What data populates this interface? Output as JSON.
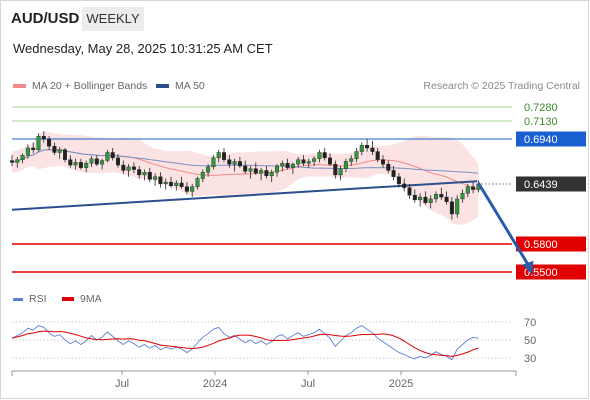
{
  "header": {
    "symbol": "AUD/USD",
    "timeframe": "WEEKLY"
  },
  "datetime": "Wednesday, May 28, 2025 10:31:25 AM CET",
  "legend": {
    "ma_bb": {
      "label": "MA 20 + Bollinger Bands",
      "color": "#f08a8a"
    },
    "ma50": {
      "label": "MA 50",
      "color": "#2b4f8c"
    },
    "credit": "Research © 2025 Trading Central"
  },
  "rsi_legend": {
    "rsi": {
      "label": "RSI",
      "color": "#5b7fd6"
    },
    "ma9": {
      "label": "9MA",
      "color": "#e00000"
    }
  },
  "chart_data": [
    {
      "type": "candlestick",
      "instrument": "AUD/USD",
      "timeframe": "WEEKLY",
      "x_ticks": [
        "Jul",
        "2024",
        "Jul",
        "2025"
      ],
      "current_price": 0.6439,
      "levels": [
        {
          "value": 0.728,
          "label": "0.7280",
          "kind": "target",
          "color": "#88c96b"
        },
        {
          "value": 0.713,
          "label": "0.7130",
          "kind": "target",
          "color": "#88c96b"
        },
        {
          "value": 0.694,
          "label": "0.6940",
          "kind": "pivot",
          "color": "#1a5fd0"
        },
        {
          "value": 0.6439,
          "label": "0.6439",
          "kind": "last",
          "color": "#333333"
        },
        {
          "value": 0.58,
          "label": "0.5800",
          "kind": "support",
          "color": "#e00000"
        },
        {
          "value": 0.55,
          "label": "0.5500",
          "kind": "support",
          "color": "#e00000"
        }
      ],
      "trendline": {
        "from": [
          0,
          0.6165
        ],
        "to": [
          87,
          0.647
        ]
      },
      "forecast_arrow": {
        "from": [
          88,
          0.645
        ],
        "to": [
          98,
          0.547
        ]
      },
      "weeks_per_tick": {
        "Jul": 20,
        "2024": 46,
        "Jul ": 72,
        "2025": 98
      },
      "ohlc": [
        [
          0.67,
          0.676,
          0.664,
          0.668
        ],
        [
          0.668,
          0.674,
          0.662,
          0.671
        ],
        [
          0.671,
          0.678,
          0.667,
          0.676
        ],
        [
          0.676,
          0.688,
          0.672,
          0.684
        ],
        [
          0.684,
          0.69,
          0.678,
          0.682
        ],
        [
          0.682,
          0.7,
          0.68,
          0.697
        ],
        [
          0.697,
          0.702,
          0.69,
          0.694
        ],
        [
          0.694,
          0.697,
          0.682,
          0.686
        ],
        [
          0.686,
          0.69,
          0.676,
          0.679
        ],
        [
          0.679,
          0.685,
          0.672,
          0.682
        ],
        [
          0.682,
          0.684,
          0.668,
          0.671
        ],
        [
          0.671,
          0.676,
          0.662,
          0.665
        ],
        [
          0.665,
          0.672,
          0.66,
          0.668
        ],
        [
          0.668,
          0.672,
          0.66,
          0.662
        ],
        [
          0.662,
          0.67,
          0.657,
          0.667
        ],
        [
          0.667,
          0.675,
          0.663,
          0.672
        ],
        [
          0.672,
          0.676,
          0.664,
          0.666
        ],
        [
          0.666,
          0.672,
          0.66,
          0.67
        ],
        [
          0.67,
          0.682,
          0.668,
          0.679
        ],
        [
          0.679,
          0.684,
          0.67,
          0.673
        ],
        [
          0.673,
          0.677,
          0.662,
          0.665
        ],
        [
          0.665,
          0.67,
          0.655,
          0.659
        ],
        [
          0.659,
          0.666,
          0.652,
          0.663
        ],
        [
          0.663,
          0.668,
          0.656,
          0.66
        ],
        [
          0.66,
          0.664,
          0.65,
          0.654
        ],
        [
          0.654,
          0.66,
          0.648,
          0.657
        ],
        [
          0.657,
          0.662,
          0.646,
          0.649
        ],
        [
          0.649,
          0.656,
          0.642,
          0.652
        ],
        [
          0.652,
          0.657,
          0.64,
          0.644
        ],
        [
          0.644,
          0.65,
          0.638,
          0.646
        ],
        [
          0.646,
          0.652,
          0.64,
          0.642
        ],
        [
          0.642,
          0.648,
          0.637,
          0.645
        ],
        [
          0.645,
          0.652,
          0.639,
          0.641
        ],
        [
          0.641,
          0.646,
          0.633,
          0.636
        ],
        [
          0.636,
          0.644,
          0.63,
          0.641
        ],
        [
          0.641,
          0.652,
          0.638,
          0.65
        ],
        [
          0.65,
          0.66,
          0.646,
          0.657
        ],
        [
          0.657,
          0.666,
          0.652,
          0.663
        ],
        [
          0.663,
          0.676,
          0.66,
          0.673
        ],
        [
          0.673,
          0.682,
          0.668,
          0.679
        ],
        [
          0.679,
          0.684,
          0.668,
          0.671
        ],
        [
          0.671,
          0.676,
          0.662,
          0.666
        ],
        [
          0.666,
          0.672,
          0.658,
          0.669
        ],
        [
          0.669,
          0.674,
          0.662,
          0.664
        ],
        [
          0.664,
          0.67,
          0.655,
          0.658
        ],
        [
          0.658,
          0.664,
          0.65,
          0.661
        ],
        [
          0.661,
          0.668,
          0.654,
          0.656
        ],
        [
          0.656,
          0.662,
          0.648,
          0.659
        ],
        [
          0.659,
          0.664,
          0.65,
          0.653
        ],
        [
          0.653,
          0.66,
          0.646,
          0.657
        ],
        [
          0.657,
          0.666,
          0.652,
          0.664
        ],
        [
          0.664,
          0.67,
          0.658,
          0.667
        ],
        [
          0.667,
          0.672,
          0.66,
          0.662
        ],
        [
          0.662,
          0.668,
          0.655,
          0.666
        ],
        [
          0.666,
          0.674,
          0.662,
          0.671
        ],
        [
          0.671,
          0.676,
          0.664,
          0.667
        ],
        [
          0.667,
          0.672,
          0.662,
          0.669
        ],
        [
          0.669,
          0.675,
          0.664,
          0.672
        ],
        [
          0.672,
          0.682,
          0.668,
          0.679
        ],
        [
          0.679,
          0.684,
          0.67,
          0.673
        ],
        [
          0.673,
          0.678,
          0.664,
          0.666
        ],
        [
          0.666,
          0.67,
          0.65,
          0.654
        ],
        [
          0.654,
          0.664,
          0.648,
          0.661
        ],
        [
          0.661,
          0.672,
          0.657,
          0.669
        ],
        [
          0.669,
          0.676,
          0.664,
          0.672
        ],
        [
          0.672,
          0.684,
          0.668,
          0.68
        ],
        [
          0.68,
          0.69,
          0.676,
          0.687
        ],
        [
          0.687,
          0.694,
          0.68,
          0.684
        ],
        [
          0.684,
          0.692,
          0.676,
          0.68
        ],
        [
          0.68,
          0.684,
          0.668,
          0.671
        ],
        [
          0.671,
          0.676,
          0.662,
          0.666
        ],
        [
          0.666,
          0.67,
          0.656,
          0.659
        ],
        [
          0.659,
          0.664,
          0.648,
          0.652
        ],
        [
          0.652,
          0.656,
          0.64,
          0.644
        ],
        [
          0.644,
          0.65,
          0.636,
          0.64
        ],
        [
          0.64,
          0.644,
          0.628,
          0.632
        ],
        [
          0.632,
          0.638,
          0.624,
          0.627
        ],
        [
          0.627,
          0.634,
          0.62,
          0.63
        ],
        [
          0.63,
          0.636,
          0.622,
          0.624
        ],
        [
          0.624,
          0.632,
          0.618,
          0.628
        ],
        [
          0.628,
          0.636,
          0.624,
          0.633
        ],
        [
          0.633,
          0.64,
          0.627,
          0.63
        ],
        [
          0.63,
          0.636,
          0.622,
          0.625
        ],
        [
          0.625,
          0.63,
          0.606,
          0.612
        ],
        [
          0.612,
          0.632,
          0.608,
          0.628
        ],
        [
          0.628,
          0.638,
          0.624,
          0.634
        ],
        [
          0.634,
          0.644,
          0.63,
          0.641
        ],
        [
          0.641,
          0.646,
          0.634,
          0.638
        ],
        [
          0.638,
          0.648,
          0.635,
          0.6439
        ]
      ]
    },
    {
      "type": "line",
      "title": "RSI",
      "y_ticks": [
        70,
        50,
        30
      ],
      "series": [
        {
          "name": "RSI",
          "color": "#5b7fd6"
        },
        {
          "name": "9MA",
          "color": "#e00000"
        }
      ],
      "rsi": [
        52,
        55,
        58,
        63,
        61,
        66,
        64,
        58,
        54,
        56,
        50,
        46,
        49,
        45,
        49,
        55,
        50,
        53,
        59,
        54,
        49,
        45,
        49,
        46,
        42,
        45,
        41,
        44,
        39,
        42,
        40,
        42,
        40,
        36,
        40,
        47,
        53,
        57,
        62,
        64,
        57,
        53,
        55,
        51,
        47,
        50,
        46,
        49,
        45,
        48,
        54,
        56,
        51,
        55,
        58,
        54,
        56,
        58,
        62,
        57,
        52,
        43,
        49,
        55,
        58,
        63,
        66,
        62,
        58,
        52,
        48,
        44,
        40,
        36,
        34,
        31,
        29,
        32,
        30,
        33,
        37,
        34,
        32,
        28,
        40,
        45,
        50,
        53,
        52
      ]
    }
  ]
}
